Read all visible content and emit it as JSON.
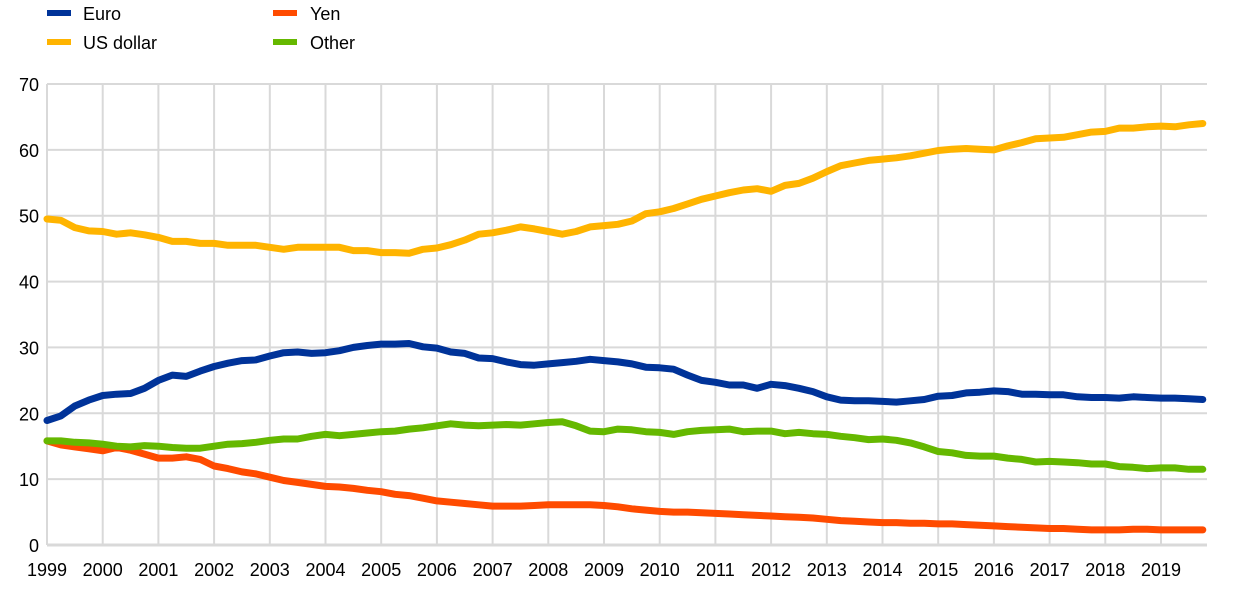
{
  "chart_data": {
    "type": "line",
    "title": "",
    "xlabel": "",
    "ylabel": "",
    "ylim": [
      0,
      70
    ],
    "yticks": [
      0,
      10,
      20,
      30,
      40,
      50,
      60,
      70
    ],
    "xticks": [
      "1999",
      "2000",
      "2001",
      "2002",
      "2003",
      "2004",
      "2005",
      "2006",
      "2007",
      "2008",
      "2009",
      "2010",
      "2011",
      "2012",
      "2013",
      "2014",
      "2015",
      "2016",
      "2017",
      "2018",
      "2019"
    ],
    "x_start": 1999.0,
    "x_end": 2019.75,
    "x_step": 0.25,
    "grid": true,
    "legend_position": "top-left",
    "series": [
      {
        "name": "Euro",
        "color": "#003399",
        "values": [
          18.9,
          19.6,
          21.1,
          22.0,
          22.7,
          22.9,
          23.0,
          23.8,
          25.0,
          25.8,
          25.6,
          26.4,
          27.1,
          27.6,
          28.0,
          28.1,
          28.7,
          29.2,
          29.3,
          29.1,
          29.2,
          29.5,
          30.0,
          30.3,
          30.5,
          30.5,
          30.6,
          30.1,
          29.9,
          29.3,
          29.1,
          28.4,
          28.3,
          27.8,
          27.4,
          27.3,
          27.5,
          27.7,
          27.9,
          28.2,
          28.0,
          27.8,
          27.5,
          27.0,
          26.9,
          26.7,
          25.8,
          25.0,
          24.7,
          24.3,
          24.3,
          23.8,
          24.4,
          24.2,
          23.8,
          23.3,
          22.5,
          22.0,
          21.9,
          21.9,
          21.8,
          21.7,
          21.9,
          22.1,
          22.6,
          22.7,
          23.1,
          23.2,
          23.4,
          23.3,
          22.9,
          22.9,
          22.8,
          22.8,
          22.5,
          22.4,
          22.4,
          22.3,
          22.5,
          22.4,
          22.3,
          22.3,
          22.2,
          22.1
        ]
      },
      {
        "name": "US dollar",
        "color": "#FFB400",
        "values": [
          49.5,
          49.3,
          48.2,
          47.7,
          47.6,
          47.2,
          47.4,
          47.1,
          46.7,
          46.1,
          46.1,
          45.8,
          45.8,
          45.5,
          45.5,
          45.5,
          45.2,
          44.9,
          45.2,
          45.2,
          45.2,
          45.2,
          44.7,
          44.7,
          44.4,
          44.4,
          44.3,
          44.9,
          45.1,
          45.6,
          46.3,
          47.2,
          47.4,
          47.8,
          48.3,
          48.0,
          47.6,
          47.2,
          47.6,
          48.3,
          48.5,
          48.7,
          49.2,
          50.3,
          50.6,
          51.1,
          51.8,
          52.5,
          53.0,
          53.5,
          53.9,
          54.1,
          53.7,
          54.6,
          54.9,
          55.7,
          56.7,
          57.6,
          58.0,
          58.4,
          58.6,
          58.8,
          59.1,
          59.5,
          59.9,
          60.1,
          60.2,
          60.1,
          60.0,
          60.6,
          61.1,
          61.7,
          61.8,
          61.9,
          62.3,
          62.7,
          62.8,
          63.3,
          63.3,
          63.5,
          63.6,
          63.5,
          63.8,
          64.0
        ]
      },
      {
        "name": "Yen",
        "color": "#FF4B00",
        "values": [
          15.8,
          15.2,
          14.9,
          14.6,
          14.3,
          14.8,
          14.4,
          13.8,
          13.2,
          13.2,
          13.4,
          13.0,
          12.0,
          11.6,
          11.1,
          10.8,
          10.3,
          9.8,
          9.5,
          9.2,
          8.9,
          8.8,
          8.6,
          8.3,
          8.1,
          7.7,
          7.5,
          7.1,
          6.7,
          6.5,
          6.3,
          6.1,
          5.9,
          5.9,
          5.9,
          6.0,
          6.1,
          6.1,
          6.1,
          6.1,
          6.0,
          5.8,
          5.5,
          5.3,
          5.1,
          5.0,
          5.0,
          4.9,
          4.8,
          4.7,
          4.6,
          4.5,
          4.4,
          4.3,
          4.2,
          4.1,
          3.9,
          3.7,
          3.6,
          3.5,
          3.4,
          3.4,
          3.3,
          3.3,
          3.2,
          3.2,
          3.1,
          3.0,
          2.9,
          2.8,
          2.7,
          2.6,
          2.5,
          2.5,
          2.4,
          2.3,
          2.3,
          2.3,
          2.4,
          2.4,
          2.3,
          2.3,
          2.3,
          2.3
        ]
      },
      {
        "name": "Other",
        "color": "#65B800",
        "values": [
          15.8,
          15.8,
          15.6,
          15.5,
          15.3,
          15.0,
          14.9,
          15.1,
          15.0,
          14.8,
          14.7,
          14.7,
          15.0,
          15.3,
          15.4,
          15.6,
          15.9,
          16.1,
          16.1,
          16.5,
          16.8,
          16.6,
          16.8,
          17.0,
          17.2,
          17.3,
          17.6,
          17.8,
          18.1,
          18.4,
          18.2,
          18.1,
          18.2,
          18.3,
          18.2,
          18.4,
          18.6,
          18.7,
          18.1,
          17.3,
          17.2,
          17.6,
          17.5,
          17.2,
          17.1,
          16.8,
          17.2,
          17.4,
          17.5,
          17.6,
          17.2,
          17.3,
          17.3,
          16.9,
          17.1,
          16.9,
          16.8,
          16.5,
          16.3,
          16.0,
          16.1,
          15.9,
          15.5,
          14.9,
          14.2,
          14.0,
          13.6,
          13.5,
          13.5,
          13.2,
          13.0,
          12.6,
          12.7,
          12.6,
          12.5,
          12.3,
          12.3,
          11.9,
          11.8,
          11.6,
          11.7,
          11.7,
          11.5,
          11.5
        ]
      }
    ]
  }
}
